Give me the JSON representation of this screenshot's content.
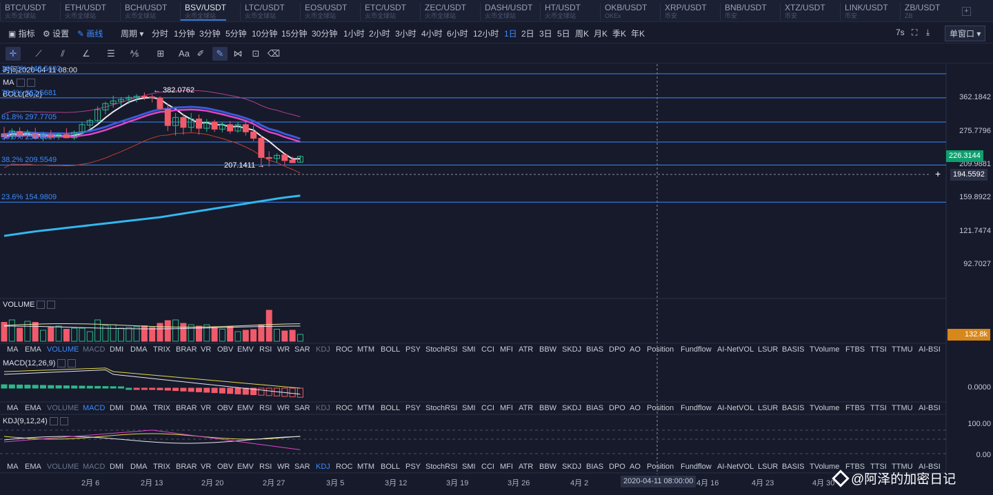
{
  "pairs": [
    {
      "name": "BTC/USDT",
      "sub": "火币全球站"
    },
    {
      "name": "ETH/USDT",
      "sub": "火币全球站"
    },
    {
      "name": "BCH/USDT",
      "sub": "火币全球站"
    },
    {
      "name": "BSV/USDT",
      "sub": "火币全球站",
      "active": true
    },
    {
      "name": "LTC/USDT",
      "sub": "火币全球站"
    },
    {
      "name": "EOS/USDT",
      "sub": "火币全球站"
    },
    {
      "name": "ETC/USDT",
      "sub": "火币全球站"
    },
    {
      "name": "ZEC/USDT",
      "sub": "火币全球站"
    },
    {
      "name": "DASH/USDT",
      "sub": "火币全球站"
    },
    {
      "name": "HT/USDT",
      "sub": "火币全球站"
    },
    {
      "name": "OKB/USDT",
      "sub": "OKEx"
    },
    {
      "name": "XRP/USDT",
      "sub": "币安"
    },
    {
      "name": "BNB/USDT",
      "sub": "币安"
    },
    {
      "name": "XTZ/USDT",
      "sub": "币安"
    },
    {
      "name": "LINK/USDT",
      "sub": "币安"
    },
    {
      "name": "ZB/USDT",
      "sub": "ZB"
    }
  ],
  "add_pair": "+",
  "toolbar": {
    "indicator": "指标",
    "settings": "设置",
    "draw": "画线",
    "period": "周期",
    "intervals": [
      "分时",
      "1分钟",
      "3分钟",
      "5分钟",
      "10分钟",
      "15分钟",
      "30分钟",
      "1小时",
      "2小时",
      "3小时",
      "4小时",
      "6小时",
      "12小时",
      "1日",
      "2日",
      "3日",
      "5日",
      "周K",
      "月K",
      "季K",
      "年K"
    ],
    "selected_interval": "1日",
    "countdown": "7s",
    "window_mode": "单窗口"
  },
  "drawing_tools": [
    "crosshair",
    "trend-line",
    "parallel-lines",
    "angle",
    "horizontal-lines",
    "fib",
    "measure",
    "text",
    "ruler",
    "draw-mode",
    "pattern",
    "lock",
    "delete"
  ],
  "text_tool": "Aa",
  "chart": {
    "time_label": "时间2020-04-11 08:00",
    "ma_label": "MA",
    "boll_label": "BOLL(20,2)",
    "fib_levels": [
      {
        "label": "100.0% 448.5603"
      },
      {
        "label": "78.6% 362.5681"
      },
      {
        "label": "61.8% 297.7705"
      },
      {
        "label": "50.0% 253.6627"
      },
      {
        "label": "38.2% 209.5549"
      },
      {
        "label": "23.6% 154.9809"
      }
    ],
    "high_marker": "← 382.0762",
    "low_marker": "207.1411 →",
    "price_axis": [
      "362.1842",
      "275.7796",
      "209.9881",
      "159.8922",
      "121.7474",
      "92.7027"
    ],
    "last_price": "226.3144",
    "cursor_price": "194.5592",
    "volume_label": "VOLUME",
    "volume_value": "132.8k",
    "macd_label": "MACD(12,26,9)",
    "macd_axis": "0.0000",
    "kdj_label": "KDJ(9,12,24)",
    "kdj_axis": [
      "100.00",
      "0.00"
    ],
    "crosshair_time": "2020-04-11 08:00:00",
    "x_axis": [
      "2月 6",
      "2月 13",
      "2月 20",
      "2月 27",
      "3月 5",
      "3月 12",
      "3月 19",
      "3月 26",
      "4月 2",
      "4月 16",
      "4月 23",
      "4月 30"
    ]
  },
  "indicator_tabs": [
    "MA",
    "EMA",
    "VOLUME",
    "MACD",
    "DMI",
    "DMA",
    "TRIX",
    "BRAR",
    "VR",
    "OBV",
    "EMV",
    "RSI",
    "WR",
    "SAR",
    "KDJ",
    "ROC",
    "MTM",
    "BOLL",
    "PSY",
    "StochRSI",
    "SMI",
    "CCI",
    "MFI",
    "ATR",
    "BBW",
    "SKDJ",
    "BIAS",
    "DPO",
    "AO",
    "Position",
    "Fundflow",
    "AI-NetVOL",
    "LSUR",
    "BASIS",
    "TVolume",
    "FTBS",
    "TTSI",
    "TTMU",
    "AI-BSI"
  ],
  "watermark": "@阿泽的加密日记",
  "colors": {
    "bg": "#161a2b",
    "up": "#2db88a",
    "down": "#f05a6a",
    "fib": "#3d8bff",
    "accent": "#3d8bff",
    "last_price": "#0e9f6e",
    "volume_tag": "#d8871a"
  },
  "chart_data": {
    "type": "candlestick",
    "title": "BSV/USDT 1日",
    "candles": [
      {
        "o": 272,
        "h": 287,
        "l": 258,
        "c": 265
      },
      {
        "o": 266,
        "h": 284,
        "l": 259,
        "c": 278
      },
      {
        "o": 277,
        "h": 286,
        "l": 263,
        "c": 268
      },
      {
        "o": 268,
        "h": 281,
        "l": 262,
        "c": 274
      },
      {
        "o": 273,
        "h": 285,
        "l": 264,
        "c": 262
      },
      {
        "o": 263,
        "h": 276,
        "l": 256,
        "c": 270
      },
      {
        "o": 270,
        "h": 280,
        "l": 260,
        "c": 264
      },
      {
        "o": 265,
        "h": 274,
        "l": 259,
        "c": 270
      },
      {
        "o": 270,
        "h": 284,
        "l": 262,
        "c": 263
      },
      {
        "o": 263,
        "h": 279,
        "l": 258,
        "c": 275
      },
      {
        "o": 276,
        "h": 298,
        "l": 272,
        "c": 292
      },
      {
        "o": 291,
        "h": 306,
        "l": 280,
        "c": 302
      },
      {
        "o": 302,
        "h": 340,
        "l": 297,
        "c": 331
      },
      {
        "o": 330,
        "h": 352,
        "l": 318,
        "c": 347
      },
      {
        "o": 347,
        "h": 370,
        "l": 336,
        "c": 354
      },
      {
        "o": 353,
        "h": 365,
        "l": 340,
        "c": 358
      },
      {
        "o": 359,
        "h": 372,
        "l": 346,
        "c": 364
      },
      {
        "o": 364,
        "h": 376,
        "l": 350,
        "c": 368
      },
      {
        "o": 368,
        "h": 382,
        "l": 356,
        "c": 366
      },
      {
        "o": 366,
        "h": 374,
        "l": 350,
        "c": 363
      },
      {
        "o": 362,
        "h": 368,
        "l": 330,
        "c": 334
      },
      {
        "o": 332,
        "h": 348,
        "l": 278,
        "c": 290
      },
      {
        "o": 290,
        "h": 322,
        "l": 268,
        "c": 310
      },
      {
        "o": 310,
        "h": 320,
        "l": 270,
        "c": 286
      },
      {
        "o": 286,
        "h": 322,
        "l": 276,
        "c": 306
      },
      {
        "o": 306,
        "h": 318,
        "l": 270,
        "c": 284
      },
      {
        "o": 284,
        "h": 306,
        "l": 276,
        "c": 298
      },
      {
        "o": 298,
        "h": 304,
        "l": 276,
        "c": 282
      },
      {
        "o": 282,
        "h": 298,
        "l": 275,
        "c": 292
      },
      {
        "o": 292,
        "h": 300,
        "l": 272,
        "c": 278
      },
      {
        "o": 278,
        "h": 298,
        "l": 274,
        "c": 292
      },
      {
        "o": 292,
        "h": 300,
        "l": 268,
        "c": 276
      },
      {
        "o": 276,
        "h": 290,
        "l": 256,
        "c": 262
      },
      {
        "o": 262,
        "h": 268,
        "l": 208,
        "c": 224
      },
      {
        "o": 224,
        "h": 236,
        "l": 207,
        "c": 222
      },
      {
        "o": 222,
        "h": 232,
        "l": 214,
        "c": 228
      },
      {
        "o": 229,
        "h": 232,
        "l": 210,
        "c": 218
      },
      {
        "o": 219,
        "h": 226,
        "l": 214,
        "c": 214
      },
      {
        "o": 215,
        "h": 228,
        "l": 214,
        "c": 226
      }
    ],
    "volume": [
      0.55,
      0.62,
      0.38,
      0.58,
      0.55,
      0.32,
      0.42,
      0.44,
      0.35,
      0.38,
      0.38,
      0.28,
      0.62,
      0.46,
      0.48,
      0.38,
      0.4,
      0.42,
      0.45,
      0.4,
      0.52,
      0.6,
      0.62,
      0.52,
      0.48,
      0.44,
      0.48,
      0.4,
      0.35,
      0.42,
      0.28,
      0.32,
      0.34,
      0.48,
      0.9,
      0.35,
      0.3,
      0.32,
      0.2
    ],
    "ylim": [
      80,
      470
    ]
  }
}
